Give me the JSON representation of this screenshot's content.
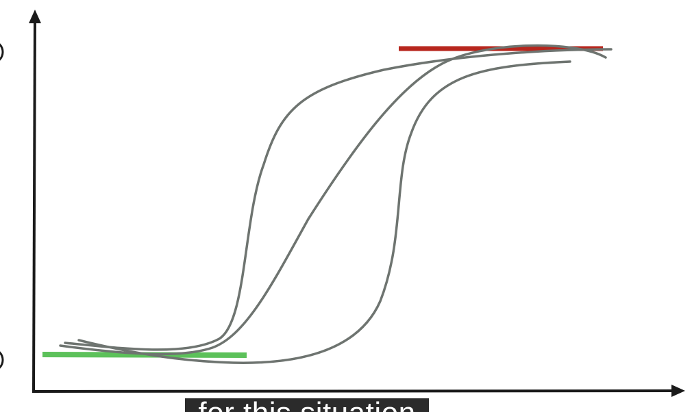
{
  "colors": {
    "axis": "#1a1a1a",
    "curve": "#6e7470",
    "low_bar": "#5cc15a",
    "high_bar": "#b7261d",
    "caption_bg": "#2b2b2b",
    "caption_text": "#ffffff"
  },
  "diagram": {
    "curves": [
      "curve-fast",
      "curve-medium",
      "curve-slow"
    ],
    "low_bar": "lower-plateau-line",
    "high_bar": "upper-plateau-line"
  },
  "caption": {
    "text": "for this situation"
  }
}
